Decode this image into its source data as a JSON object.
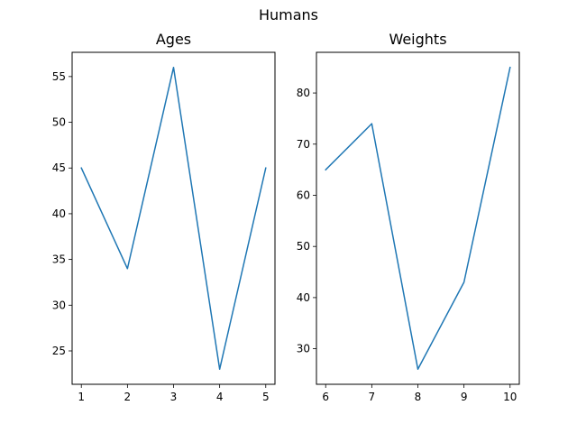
{
  "figure": {
    "suptitle": "Humans"
  },
  "colors": {
    "line": "#1f77b4",
    "axes": "#000000",
    "background": "#ffffff"
  },
  "chart_data": [
    {
      "type": "line",
      "title": "Ages",
      "xlabel": "",
      "ylabel": "",
      "x": [
        1,
        2,
        3,
        4,
        5
      ],
      "series": [
        {
          "values": [
            45,
            34,
            56,
            23,
            45
          ]
        }
      ],
      "xticks": [
        1,
        2,
        3,
        4,
        5
      ],
      "yticks": [
        25,
        30,
        35,
        40,
        45,
        50,
        55
      ],
      "xlim": [
        0.8,
        5.2
      ],
      "ylim": [
        21.35,
        57.65
      ],
      "grid": false,
      "legend": "none"
    },
    {
      "type": "line",
      "title": "Weights",
      "xlabel": "",
      "ylabel": "",
      "x": [
        6,
        7,
        8,
        9,
        10
      ],
      "series": [
        {
          "values": [
            65,
            74,
            26,
            43,
            85
          ]
        }
      ],
      "xticks": [
        6,
        7,
        8,
        9,
        10
      ],
      "yticks": [
        30,
        40,
        50,
        60,
        70,
        80
      ],
      "xlim": [
        5.8,
        10.2
      ],
      "ylim": [
        23.05,
        87.95
      ],
      "grid": false,
      "legend": "none"
    }
  ]
}
